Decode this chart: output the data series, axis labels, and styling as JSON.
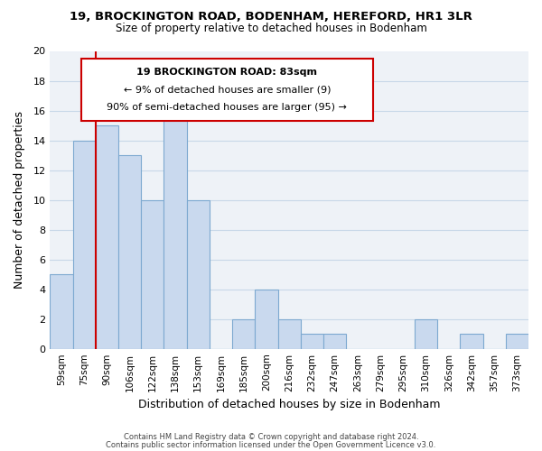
{
  "title_line1": "19, BROCKINGTON ROAD, BODENHAM, HEREFORD, HR1 3LR",
  "title_line2": "Size of property relative to detached houses in Bodenham",
  "xlabel": "Distribution of detached houses by size in Bodenham",
  "ylabel": "Number of detached properties",
  "bin_labels": [
    "59sqm",
    "75sqm",
    "90sqm",
    "106sqm",
    "122sqm",
    "138sqm",
    "153sqm",
    "169sqm",
    "185sqm",
    "200sqm",
    "216sqm",
    "232sqm",
    "247sqm",
    "263sqm",
    "279sqm",
    "295sqm",
    "310sqm",
    "326sqm",
    "342sqm",
    "357sqm",
    "373sqm"
  ],
  "bar_heights": [
    5,
    14,
    15,
    13,
    10,
    16,
    10,
    0,
    2,
    4,
    2,
    1,
    1,
    0,
    0,
    0,
    2,
    0,
    1,
    0,
    1
  ],
  "bar_color": "#c9d9ee",
  "bar_edge_color": "#7da9d0",
  "vline_color": "#cc0000",
  "vline_x_idx": 2,
  "ylim": [
    0,
    20
  ],
  "yticks": [
    0,
    2,
    4,
    6,
    8,
    10,
    12,
    14,
    16,
    18,
    20
  ],
  "annotation_title": "19 BROCKINGTON ROAD: 83sqm",
  "annotation_line2": "← 9% of detached houses are smaller (9)",
  "annotation_line3": "90% of semi-detached houses are larger (95) →",
  "footer_line1": "Contains HM Land Registry data © Crown copyright and database right 2024.",
  "footer_line2": "Contains public sector information licensed under the Open Government Licence v3.0.",
  "grid_color": "#c8d8e8",
  "background_color": "#eef2f7"
}
